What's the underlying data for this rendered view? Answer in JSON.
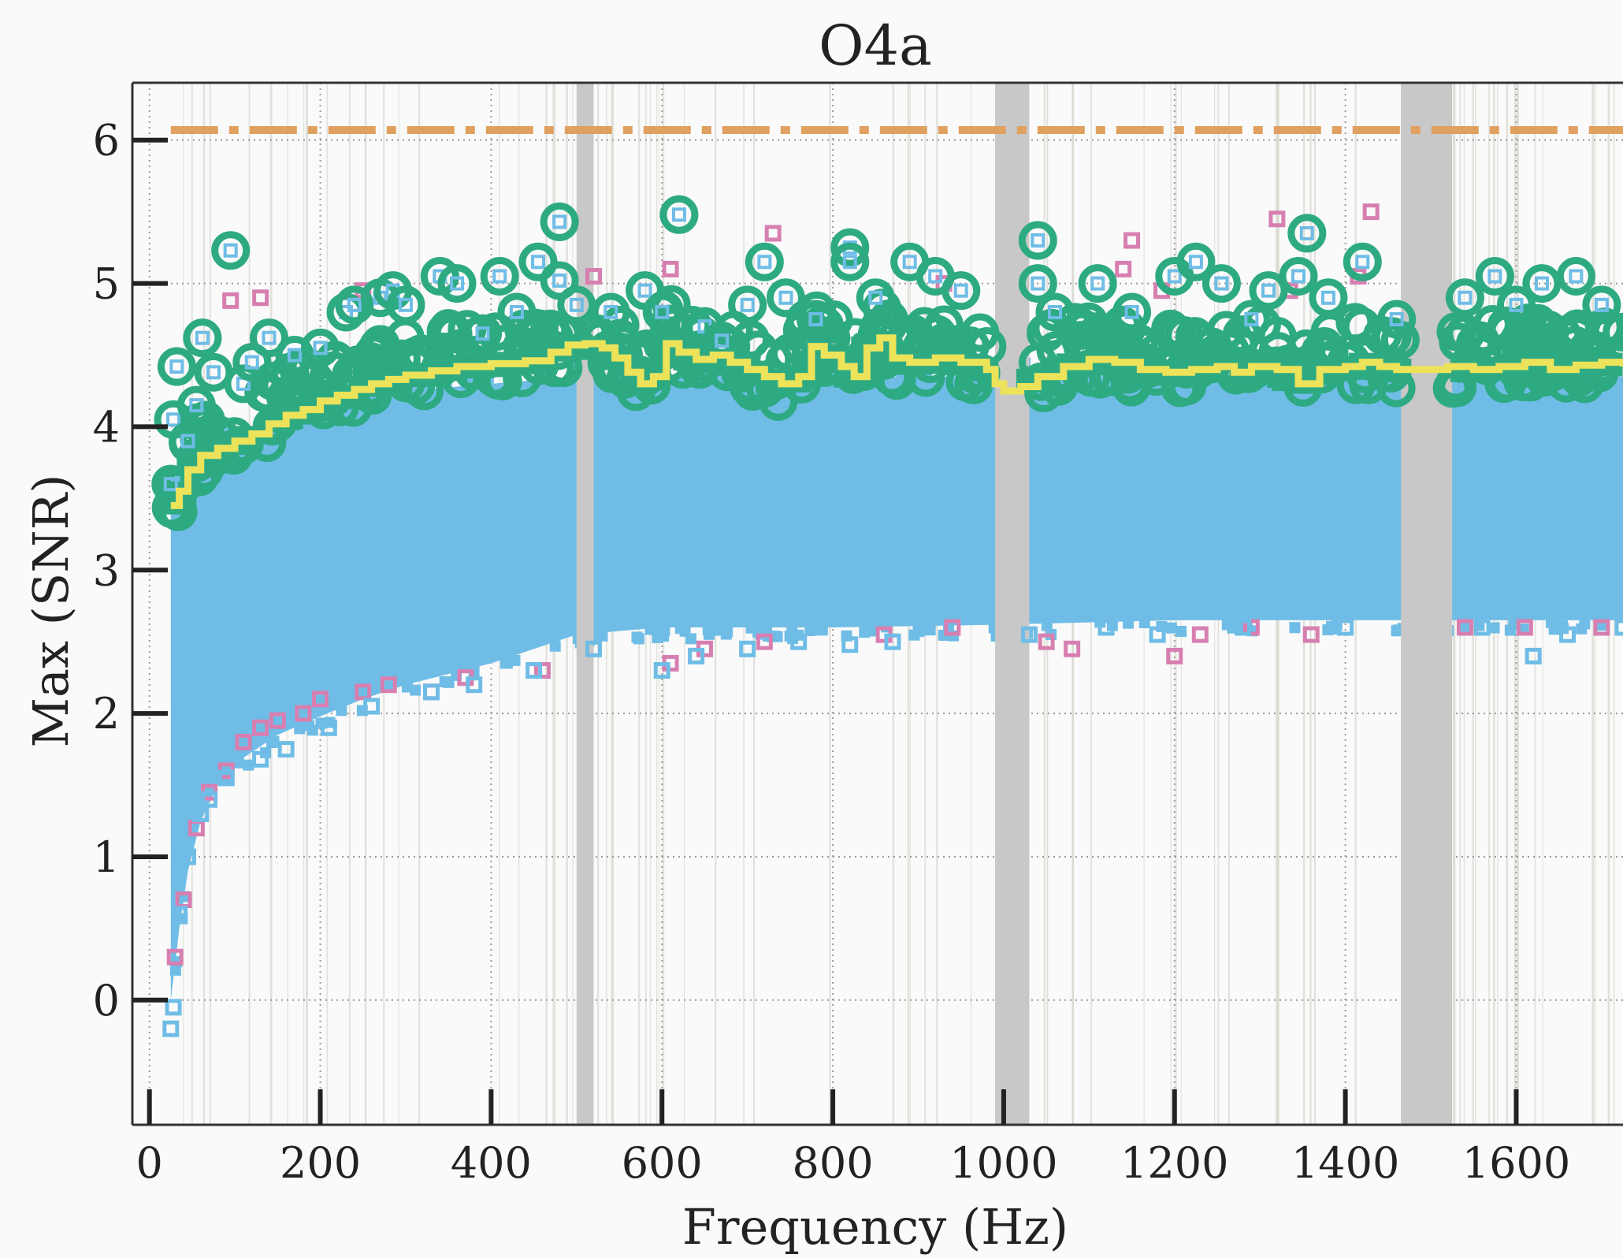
{
  "chart_data": {
    "type": "scatter",
    "title": "O4a",
    "xlabel": "Frequency (Hz)",
    "ylabel": "Max (SNR)",
    "xlim": [
      -20,
      1725
    ],
    "ylim": [
      -0.87,
      6.4
    ],
    "xticks": [
      "0",
      "200",
      "400",
      "600",
      "800",
      "1000",
      "1200",
      "1400",
      "1600"
    ],
    "yticks": [
      "0",
      "1",
      "2",
      "3",
      "4",
      "5",
      "6"
    ],
    "grid": true,
    "threshold": {
      "value": 6.07,
      "style": "dash-dot",
      "color": "#e0a060"
    },
    "vetoed_bands_hz": [
      [
        500,
        520
      ],
      [
        990,
        1030
      ],
      [
        1465,
        1525
      ]
    ],
    "colors": {
      "background_points": "#6fbde6",
      "vetoed_points": "#d77fb0",
      "outliers": "#2eaa82",
      "threshold_curve": "#ece35a",
      "veto_band": "#c8c8c8"
    },
    "series": [
      {
        "type": "band",
        "lower": [
          [
            25,
            0.0
          ],
          [
            35,
            0.5
          ],
          [
            45,
            0.9
          ],
          [
            60,
            1.25
          ],
          [
            80,
            1.5
          ],
          [
            100,
            1.65
          ],
          [
            150,
            1.85
          ],
          [
            200,
            1.98
          ],
          [
            250,
            2.1
          ],
          [
            300,
            2.2
          ],
          [
            400,
            2.35
          ],
          [
            500,
            2.55
          ],
          [
            600,
            2.6
          ],
          [
            800,
            2.6
          ],
          [
            1000,
            2.62
          ],
          [
            1200,
            2.65
          ],
          [
            1400,
            2.65
          ],
          [
            1725,
            2.65
          ]
        ],
        "upper": [
          [
            25,
            3.4
          ],
          [
            40,
            3.65
          ],
          [
            60,
            3.8
          ],
          [
            100,
            3.95
          ],
          [
            150,
            4.05
          ],
          [
            200,
            4.15
          ],
          [
            300,
            4.25
          ],
          [
            400,
            4.3
          ],
          [
            500,
            4.35
          ],
          [
            600,
            4.35
          ],
          [
            800,
            4.35
          ],
          [
            1000,
            4.35
          ],
          [
            1200,
            4.35
          ],
          [
            1400,
            4.35
          ],
          [
            1725,
            4.35
          ]
        ]
      },
      {
        "type": "step",
        "points": [
          [
            25,
            3.45
          ],
          [
            35,
            3.55
          ],
          [
            45,
            3.7
          ],
          [
            60,
            3.8
          ],
          [
            80,
            3.85
          ],
          [
            100,
            3.9
          ],
          [
            120,
            3.95
          ],
          [
            140,
            4.02
          ],
          [
            160,
            4.08
          ],
          [
            180,
            4.12
          ],
          [
            200,
            4.18
          ],
          [
            220,
            4.22
          ],
          [
            240,
            4.26
          ],
          [
            260,
            4.3
          ],
          [
            280,
            4.33
          ],
          [
            300,
            4.36
          ],
          [
            330,
            4.39
          ],
          [
            360,
            4.42
          ],
          [
            400,
            4.44
          ],
          [
            440,
            4.46
          ],
          [
            470,
            4.52
          ],
          [
            490,
            4.57
          ],
          [
            510,
            4.58
          ],
          [
            530,
            4.55
          ],
          [
            545,
            4.48
          ],
          [
            560,
            4.38
          ],
          [
            575,
            4.3
          ],
          [
            590,
            4.35
          ],
          [
            605,
            4.58
          ],
          [
            620,
            4.52
          ],
          [
            640,
            4.47
          ],
          [
            660,
            4.5
          ],
          [
            680,
            4.45
          ],
          [
            700,
            4.4
          ],
          [
            720,
            4.35
          ],
          [
            740,
            4.3
          ],
          [
            760,
            4.35
          ],
          [
            775,
            4.56
          ],
          [
            790,
            4.5
          ],
          [
            810,
            4.42
          ],
          [
            825,
            4.35
          ],
          [
            840,
            4.55
          ],
          [
            855,
            4.62
          ],
          [
            870,
            4.48
          ],
          [
            890,
            4.45
          ],
          [
            920,
            4.48
          ],
          [
            950,
            4.45
          ],
          [
            980,
            4.4
          ],
          [
            990,
            4.3
          ],
          [
            1000,
            4.25
          ],
          [
            1020,
            4.28
          ],
          [
            1040,
            4.35
          ],
          [
            1070,
            4.42
          ],
          [
            1100,
            4.47
          ],
          [
            1130,
            4.45
          ],
          [
            1160,
            4.4
          ],
          [
            1190,
            4.38
          ],
          [
            1220,
            4.4
          ],
          [
            1250,
            4.42
          ],
          [
            1270,
            4.38
          ],
          [
            1290,
            4.42
          ],
          [
            1320,
            4.4
          ],
          [
            1345,
            4.3
          ],
          [
            1370,
            4.4
          ],
          [
            1400,
            4.42
          ],
          [
            1420,
            4.45
          ],
          [
            1440,
            4.42
          ],
          [
            1460,
            4.4
          ],
          [
            1490,
            4.4
          ],
          [
            1520,
            4.42
          ],
          [
            1550,
            4.4
          ],
          [
            1580,
            4.42
          ],
          [
            1610,
            4.45
          ],
          [
            1640,
            4.4
          ],
          [
            1670,
            4.43
          ],
          [
            1700,
            4.45
          ],
          [
            1725,
            4.42
          ]
        ]
      },
      {
        "type": "outliers",
        "points": [
          [
            25,
            3.6
          ],
          [
            28,
            4.05
          ],
          [
            32,
            4.42
          ],
          [
            45,
            3.9
          ],
          [
            55,
            4.15
          ],
          [
            62,
            4.62
          ],
          [
            75,
            4.38
          ],
          [
            95,
            5.23
          ],
          [
            110,
            4.3
          ],
          [
            120,
            4.45
          ],
          [
            140,
            4.62
          ],
          [
            170,
            4.5
          ],
          [
            200,
            4.55
          ],
          [
            230,
            4.8
          ],
          [
            240,
            4.85
          ],
          [
            270,
            4.9
          ],
          [
            285,
            4.95
          ],
          [
            300,
            4.85
          ],
          [
            340,
            5.05
          ],
          [
            360,
            5.0
          ],
          [
            390,
            4.65
          ],
          [
            410,
            5.05
          ],
          [
            430,
            4.8
          ],
          [
            455,
            5.15
          ],
          [
            480,
            5.43
          ],
          [
            480,
            5.02
          ],
          [
            500,
            4.85
          ],
          [
            540,
            4.8
          ],
          [
            580,
            4.95
          ],
          [
            600,
            4.8
          ],
          [
            620,
            5.48
          ],
          [
            650,
            4.7
          ],
          [
            670,
            4.6
          ],
          [
            700,
            4.85
          ],
          [
            720,
            5.15
          ],
          [
            745,
            4.9
          ],
          [
            780,
            4.75
          ],
          [
            820,
            5.25
          ],
          [
            820,
            5.15
          ],
          [
            850,
            4.9
          ],
          [
            890,
            5.15
          ],
          [
            920,
            5.05
          ],
          [
            950,
            4.95
          ],
          [
            1040,
            5.3
          ],
          [
            1040,
            5.0
          ],
          [
            1060,
            4.8
          ],
          [
            1110,
            5.0
          ],
          [
            1150,
            4.8
          ],
          [
            1200,
            5.05
          ],
          [
            1225,
            5.15
          ],
          [
            1255,
            5.0
          ],
          [
            1290,
            4.75
          ],
          [
            1310,
            4.95
          ],
          [
            1345,
            5.05
          ],
          [
            1355,
            5.35
          ],
          [
            1380,
            4.9
          ],
          [
            1420,
            5.15
          ],
          [
            1460,
            4.75
          ],
          [
            1540,
            4.9
          ],
          [
            1575,
            5.05
          ],
          [
            1600,
            4.85
          ],
          [
            1630,
            5.0
          ],
          [
            1670,
            5.05
          ],
          [
            1700,
            4.85
          ]
        ]
      },
      {
        "type": "vetoed",
        "points": [
          [
            30,
            0.3
          ],
          [
            40,
            0.7
          ],
          [
            55,
            1.2
          ],
          [
            70,
            1.45
          ],
          [
            90,
            1.6
          ],
          [
            110,
            1.8
          ],
          [
            130,
            1.9
          ],
          [
            150,
            1.95
          ],
          [
            180,
            2.0
          ],
          [
            200,
            2.1
          ],
          [
            250,
            2.15
          ],
          [
            280,
            2.2
          ],
          [
            330,
            2.15
          ],
          [
            370,
            2.25
          ],
          [
            460,
            2.3
          ],
          [
            610,
            2.35
          ],
          [
            650,
            2.45
          ],
          [
            720,
            2.5
          ],
          [
            860,
            2.55
          ],
          [
            940,
            2.6
          ],
          [
            1050,
            2.5
          ],
          [
            1080,
            2.45
          ],
          [
            1200,
            2.4
          ],
          [
            1230,
            2.55
          ],
          [
            1290,
            2.6
          ],
          [
            1360,
            2.55
          ],
          [
            1540,
            2.6
          ],
          [
            1610,
            2.6
          ],
          [
            1700,
            2.6
          ],
          [
            130,
            4.9
          ],
          [
            95,
            4.88
          ],
          [
            250,
            4.95
          ],
          [
            520,
            5.05
          ],
          [
            610,
            5.1
          ],
          [
            730,
            5.35
          ],
          [
            930,
            5.0
          ],
          [
            1140,
            5.1
          ],
          [
            1185,
            4.95
          ],
          [
            1320,
            5.45
          ],
          [
            1335,
            4.95
          ],
          [
            1415,
            5.05
          ],
          [
            1430,
            5.5
          ],
          [
            1150,
            5.3
          ]
        ]
      },
      {
        "type": "isolated_background",
        "points": [
          [
            25,
            -0.2
          ],
          [
            28,
            -0.05
          ],
          [
            35,
            0.6
          ],
          [
            45,
            1.0
          ],
          [
            60,
            1.3
          ],
          [
            70,
            1.4
          ],
          [
            90,
            1.55
          ],
          [
            130,
            1.68
          ],
          [
            160,
            1.75
          ],
          [
            210,
            1.9
          ],
          [
            260,
            2.05
          ],
          [
            330,
            2.15
          ],
          [
            380,
            2.2
          ],
          [
            450,
            2.3
          ],
          [
            520,
            2.45
          ],
          [
            600,
            2.3
          ],
          [
            640,
            2.4
          ],
          [
            700,
            2.45
          ],
          [
            760,
            2.5
          ],
          [
            820,
            2.48
          ],
          [
            870,
            2.5
          ],
          [
            1030,
            2.55
          ],
          [
            1120,
            2.6
          ],
          [
            1180,
            2.55
          ],
          [
            1280,
            2.6
          ],
          [
            1400,
            2.6
          ],
          [
            1560,
            2.6
          ],
          [
            1620,
            2.4
          ],
          [
            1660,
            2.55
          ],
          [
            1725,
            2.6
          ]
        ]
      }
    ]
  }
}
